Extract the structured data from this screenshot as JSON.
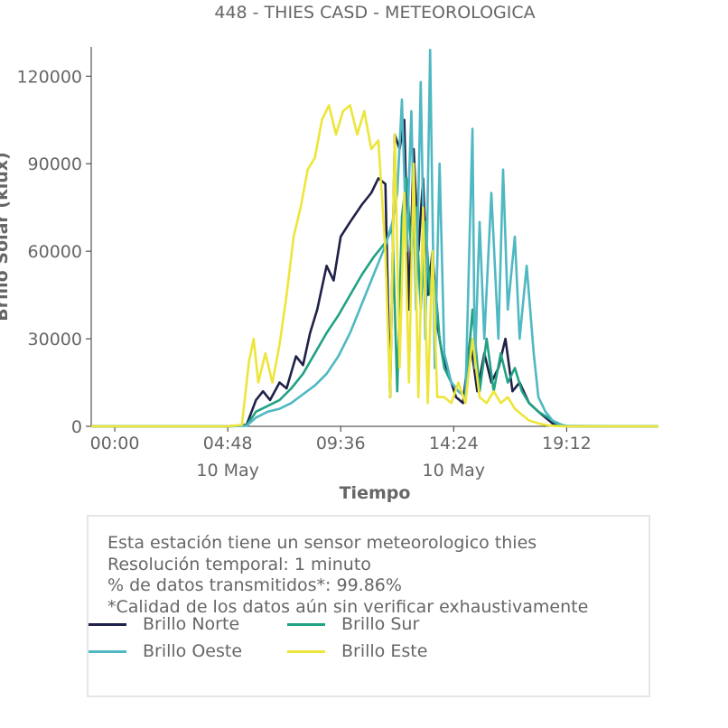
{
  "chart_data": {
    "type": "line",
    "title": "448 - THIES CASD - METEOROLOGICA",
    "xlabel": "Tiempo",
    "ylabel": "Brillo Solar (klux)",
    "ylim": [
      0,
      130000
    ],
    "yticks": [
      0,
      30000,
      60000,
      90000,
      120000
    ],
    "xlim_hours": [
      -1.0,
      23.1
    ],
    "xticks": [
      {
        "hour": 0.0,
        "label": "00:00",
        "sublabel": ""
      },
      {
        "hour": 4.8,
        "label": "04:48",
        "sublabel": "10 May"
      },
      {
        "hour": 9.6,
        "label": "09:36",
        "sublabel": ""
      },
      {
        "hour": 14.4,
        "label": "14:24",
        "sublabel": "10 May"
      },
      {
        "hour": 19.2,
        "label": "19:12",
        "sublabel": ""
      }
    ],
    "grid": false,
    "series": [
      {
        "name": "Brillo Norte",
        "color": "#1f2148",
        "x": [
          -1.0,
          4.8,
          5.6,
          6.0,
          6.3,
          6.6,
          7.0,
          7.3,
          7.7,
          8.0,
          8.3,
          8.6,
          9.0,
          9.3,
          9.6,
          10.0,
          10.5,
          10.9,
          11.2,
          11.5,
          11.7,
          11.9,
          12.1,
          12.3,
          12.5,
          12.7,
          12.9,
          13.1,
          13.3,
          13.5,
          13.7,
          13.9,
          14.1,
          14.3,
          14.5,
          14.8,
          15.1,
          15.4,
          15.7,
          16.0,
          16.3,
          16.6,
          16.9,
          17.2,
          17.6,
          18.0,
          18.3,
          18.6,
          19.0,
          19.3,
          23.1
        ],
        "y": [
          0,
          0,
          500,
          9000,
          12000,
          9000,
          15000,
          13000,
          24000,
          21000,
          32000,
          40000,
          55000,
          50000,
          65000,
          70000,
          76000,
          80000,
          85000,
          83000,
          10000,
          100000,
          95000,
          105000,
          40000,
          95000,
          60000,
          85000,
          45000,
          60000,
          35000,
          25000,
          20000,
          15000,
          10000,
          8000,
          30000,
          12000,
          25000,
          15000,
          20000,
          30000,
          12000,
          15000,
          8000,
          5000,
          3000,
          1000,
          300,
          0,
          0
        ]
      },
      {
        "name": "Brillo Sur",
        "color": "#21a284",
        "x": [
          -1.0,
          4.8,
          5.6,
          6.0,
          6.5,
          7.0,
          7.5,
          8.0,
          8.5,
          9.0,
          9.5,
          10.0,
          10.5,
          11.0,
          11.5,
          11.8,
          12.0,
          12.2,
          12.4,
          12.6,
          12.8,
          13.0,
          13.2,
          13.4,
          13.6,
          13.8,
          14.0,
          14.3,
          14.6,
          14.9,
          15.2,
          15.5,
          15.8,
          16.1,
          16.4,
          16.7,
          17.0,
          17.3,
          17.6,
          18.0,
          18.4,
          18.8,
          19.2,
          23.1
        ],
        "y": [
          0,
          0,
          300,
          5000,
          7000,
          9000,
          13000,
          18000,
          25000,
          32000,
          38000,
          45000,
          52000,
          58000,
          63000,
          68000,
          12000,
          72000,
          85000,
          60000,
          75000,
          40000,
          70000,
          45000,
          50000,
          30000,
          20000,
          15000,
          12000,
          10000,
          40000,
          12000,
          30000,
          12000,
          25000,
          15000,
          20000,
          12000,
          8000,
          5000,
          3000,
          800,
          100,
          0
        ]
      },
      {
        "name": "Brillo Oeste",
        "color": "#4fb8c2",
        "x": [
          -1.0,
          4.8,
          5.6,
          6.0,
          6.5,
          7.0,
          7.5,
          8.0,
          8.5,
          9.0,
          9.5,
          10.0,
          10.5,
          11.0,
          11.5,
          11.8,
          12.0,
          12.2,
          12.4,
          12.6,
          12.8,
          13.0,
          13.2,
          13.4,
          13.6,
          13.8,
          14.0,
          14.3,
          14.6,
          14.9,
          15.2,
          15.3,
          15.5,
          15.7,
          16.0,
          16.3,
          16.5,
          16.7,
          17.0,
          17.2,
          17.5,
          17.8,
          18.0,
          18.3,
          18.6,
          19.0,
          19.3,
          23.1
        ],
        "y": [
          0,
          0,
          200,
          3000,
          5000,
          6000,
          8000,
          11000,
          14000,
          18000,
          24000,
          32000,
          42000,
          52000,
          62000,
          70000,
          80000,
          112000,
          60000,
          108000,
          40000,
          118000,
          30000,
          129000,
          20000,
          90000,
          25000,
          15000,
          12000,
          10000,
          102000,
          20000,
          70000,
          30000,
          80000,
          30000,
          88000,
          40000,
          65000,
          30000,
          55000,
          25000,
          10000,
          5000,
          2000,
          500,
          0,
          0
        ]
      },
      {
        "name": "Brillo Este",
        "color": "#ede53a",
        "x": [
          -1.0,
          4.8,
          5.4,
          5.7,
          5.9,
          6.1,
          6.4,
          6.7,
          7.0,
          7.3,
          7.6,
          7.9,
          8.2,
          8.5,
          8.8,
          9.1,
          9.4,
          9.7,
          10.0,
          10.3,
          10.6,
          10.9,
          11.2,
          11.5,
          11.7,
          11.9,
          12.1,
          12.3,
          12.5,
          12.7,
          12.9,
          13.1,
          13.3,
          13.5,
          13.7,
          14.0,
          14.3,
          14.6,
          14.9,
          15.2,
          15.5,
          15.8,
          16.1,
          16.4,
          16.7,
          17.0,
          17.3,
          17.6,
          18.0,
          18.4,
          18.8,
          19.2,
          23.1
        ],
        "y": [
          0,
          0,
          500,
          22000,
          30000,
          15000,
          25000,
          15000,
          28000,
          45000,
          65000,
          75000,
          88000,
          92000,
          105000,
          110000,
          100000,
          108000,
          110000,
          100000,
          108000,
          95000,
          98000,
          60000,
          10000,
          100000,
          20000,
          80000,
          15000,
          90000,
          10000,
          75000,
          8000,
          60000,
          10000,
          10000,
          8000,
          15000,
          8000,
          30000,
          10000,
          8000,
          12000,
          8000,
          10000,
          6000,
          4000,
          2000,
          1000,
          300,
          100,
          0,
          0
        ]
      }
    ]
  },
  "info": {
    "line1": "Esta estación tiene un sensor meteorologico thies",
    "line2": "Resolución temporal: 1 minuto",
    "line3": "% de datos transmitidos*: 99.86%",
    "line4": "*Calidad de los datos aún sin verificar exhaustivamente"
  },
  "legend": [
    {
      "label": "Brillo Norte",
      "color": "#1f2148"
    },
    {
      "label": "Brillo Sur",
      "color": "#21a284"
    },
    {
      "label": "Brillo Oeste",
      "color": "#4fb8c2"
    },
    {
      "label": "Brillo Este",
      "color": "#ede53a"
    }
  ]
}
